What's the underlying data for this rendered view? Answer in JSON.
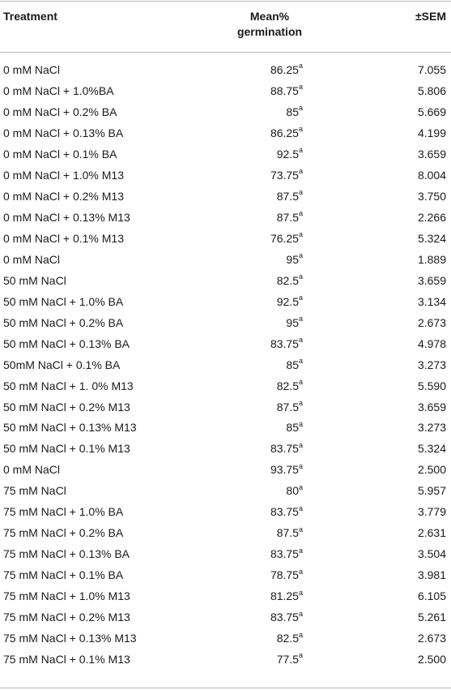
{
  "table": {
    "headers": {
      "treatment": "Treatment",
      "mean_line1": "Mean%",
      "mean_line2": "germination",
      "sem": "±SEM"
    },
    "rows": [
      {
        "treatment": "0 mM NaCl",
        "mean": "86.25",
        "sup": "a",
        "sem": "7.055"
      },
      {
        "treatment": "0 mM NaCl + 1.0%BA",
        "mean": "88.75",
        "sup": "a",
        "sem": "5.806"
      },
      {
        "treatment": "0 mM NaCl + 0.2% BA",
        "mean": "85",
        "sup": "a",
        "sem": "5.669"
      },
      {
        "treatment": "0 mM NaCl + 0.13% BA",
        "mean": "86.25",
        "sup": "a",
        "sem": "4.199"
      },
      {
        "treatment": "0 mM NaCl + 0.1% BA",
        "mean": "92.5",
        "sup": "a",
        "sem": "3.659"
      },
      {
        "treatment": "0 mM NaCl + 1.0% M13",
        "mean": "73.75",
        "sup": "a",
        "sem": "8.004"
      },
      {
        "treatment": "0 mM NaCl + 0.2% M13",
        "mean": "87.5",
        "sup": "a",
        "sem": "3.750"
      },
      {
        "treatment": "0 mM NaCl + 0.13% M13",
        "mean": "87.5",
        "sup": "a",
        "sem": "2.266"
      },
      {
        "treatment": "0 mM NaCl + 0.1% M13",
        "mean": "76.25",
        "sup": "a",
        "sem": "5.324"
      },
      {
        "treatment": "0 mM NaCl",
        "mean": "95",
        "sup": "a",
        "sem": "1.889"
      },
      {
        "treatment": "50 mM NaCl",
        "mean": "82.5",
        "sup": "a",
        "sem": "3.659"
      },
      {
        "treatment": "50 mM NaCl + 1.0% BA",
        "mean": "92.5",
        "sup": "a",
        "sem": "3.134"
      },
      {
        "treatment": "50 mM NaCl + 0.2% BA",
        "mean": "95",
        "sup": "a",
        "sem": "2.673"
      },
      {
        "treatment": "50 mM NaCl + 0.13% BA",
        "mean": "83.75",
        "sup": "a",
        "sem": "4.978"
      },
      {
        "treatment": "50mM NaCl + 0.1% BA",
        "mean": "85",
        "sup": "a",
        "sem": "3.273"
      },
      {
        "treatment": "50 mM NaCl + 1. 0% M13",
        "mean": "82.5",
        "sup": "a",
        "sem": "5.590"
      },
      {
        "treatment": "50 mM NaCl + 0.2% M13",
        "mean": "87.5",
        "sup": "a",
        "sem": "3.659"
      },
      {
        "treatment": "50 mM NaCl + 0.13% M13",
        "mean": "85",
        "sup": "a",
        "sem": "3.273"
      },
      {
        "treatment": "50 mM NaCl + 0.1% M13",
        "mean": "83.75",
        "sup": "a",
        "sem": "5.324"
      },
      {
        "treatment": "0 mM NaCl",
        "mean": "93.75",
        "sup": "a",
        "sem": "2.500"
      },
      {
        "treatment": "75 mM NaCl",
        "mean": "80",
        "sup": "a",
        "sem": "5.957"
      },
      {
        "treatment": "75 mM NaCl + 1.0% BA",
        "mean": "83.75",
        "sup": "a",
        "sem": "3.779"
      },
      {
        "treatment": "75 mM NaCl + 0.2% BA",
        "mean": "87.5",
        "sup": "a",
        "sem": "2.631"
      },
      {
        "treatment": "75 mM NaCl + 0.13% BA",
        "mean": "83.75",
        "sup": "a",
        "sem": "3.504"
      },
      {
        "treatment": "75 mM NaCl + 0.1% BA",
        "mean": "78.75",
        "sup": "a",
        "sem": "3.981"
      },
      {
        "treatment": "75 mM NaCl + 1.0% M13",
        "mean": "81.25",
        "sup": "a",
        "sem": "6.105"
      },
      {
        "treatment": "75 mM NaCl + 0.2% M13",
        "mean": "83.75",
        "sup": "a",
        "sem": "5.261"
      },
      {
        "treatment": "75 mM NaCl + 0.13% M13",
        "mean": "82.5",
        "sup": "a",
        "sem": "2.673"
      },
      {
        "treatment": "75 mM NaCl + 0.1% M13",
        "mean": "77.5",
        "sup": "a",
        "sem": "2.500"
      }
    ]
  }
}
